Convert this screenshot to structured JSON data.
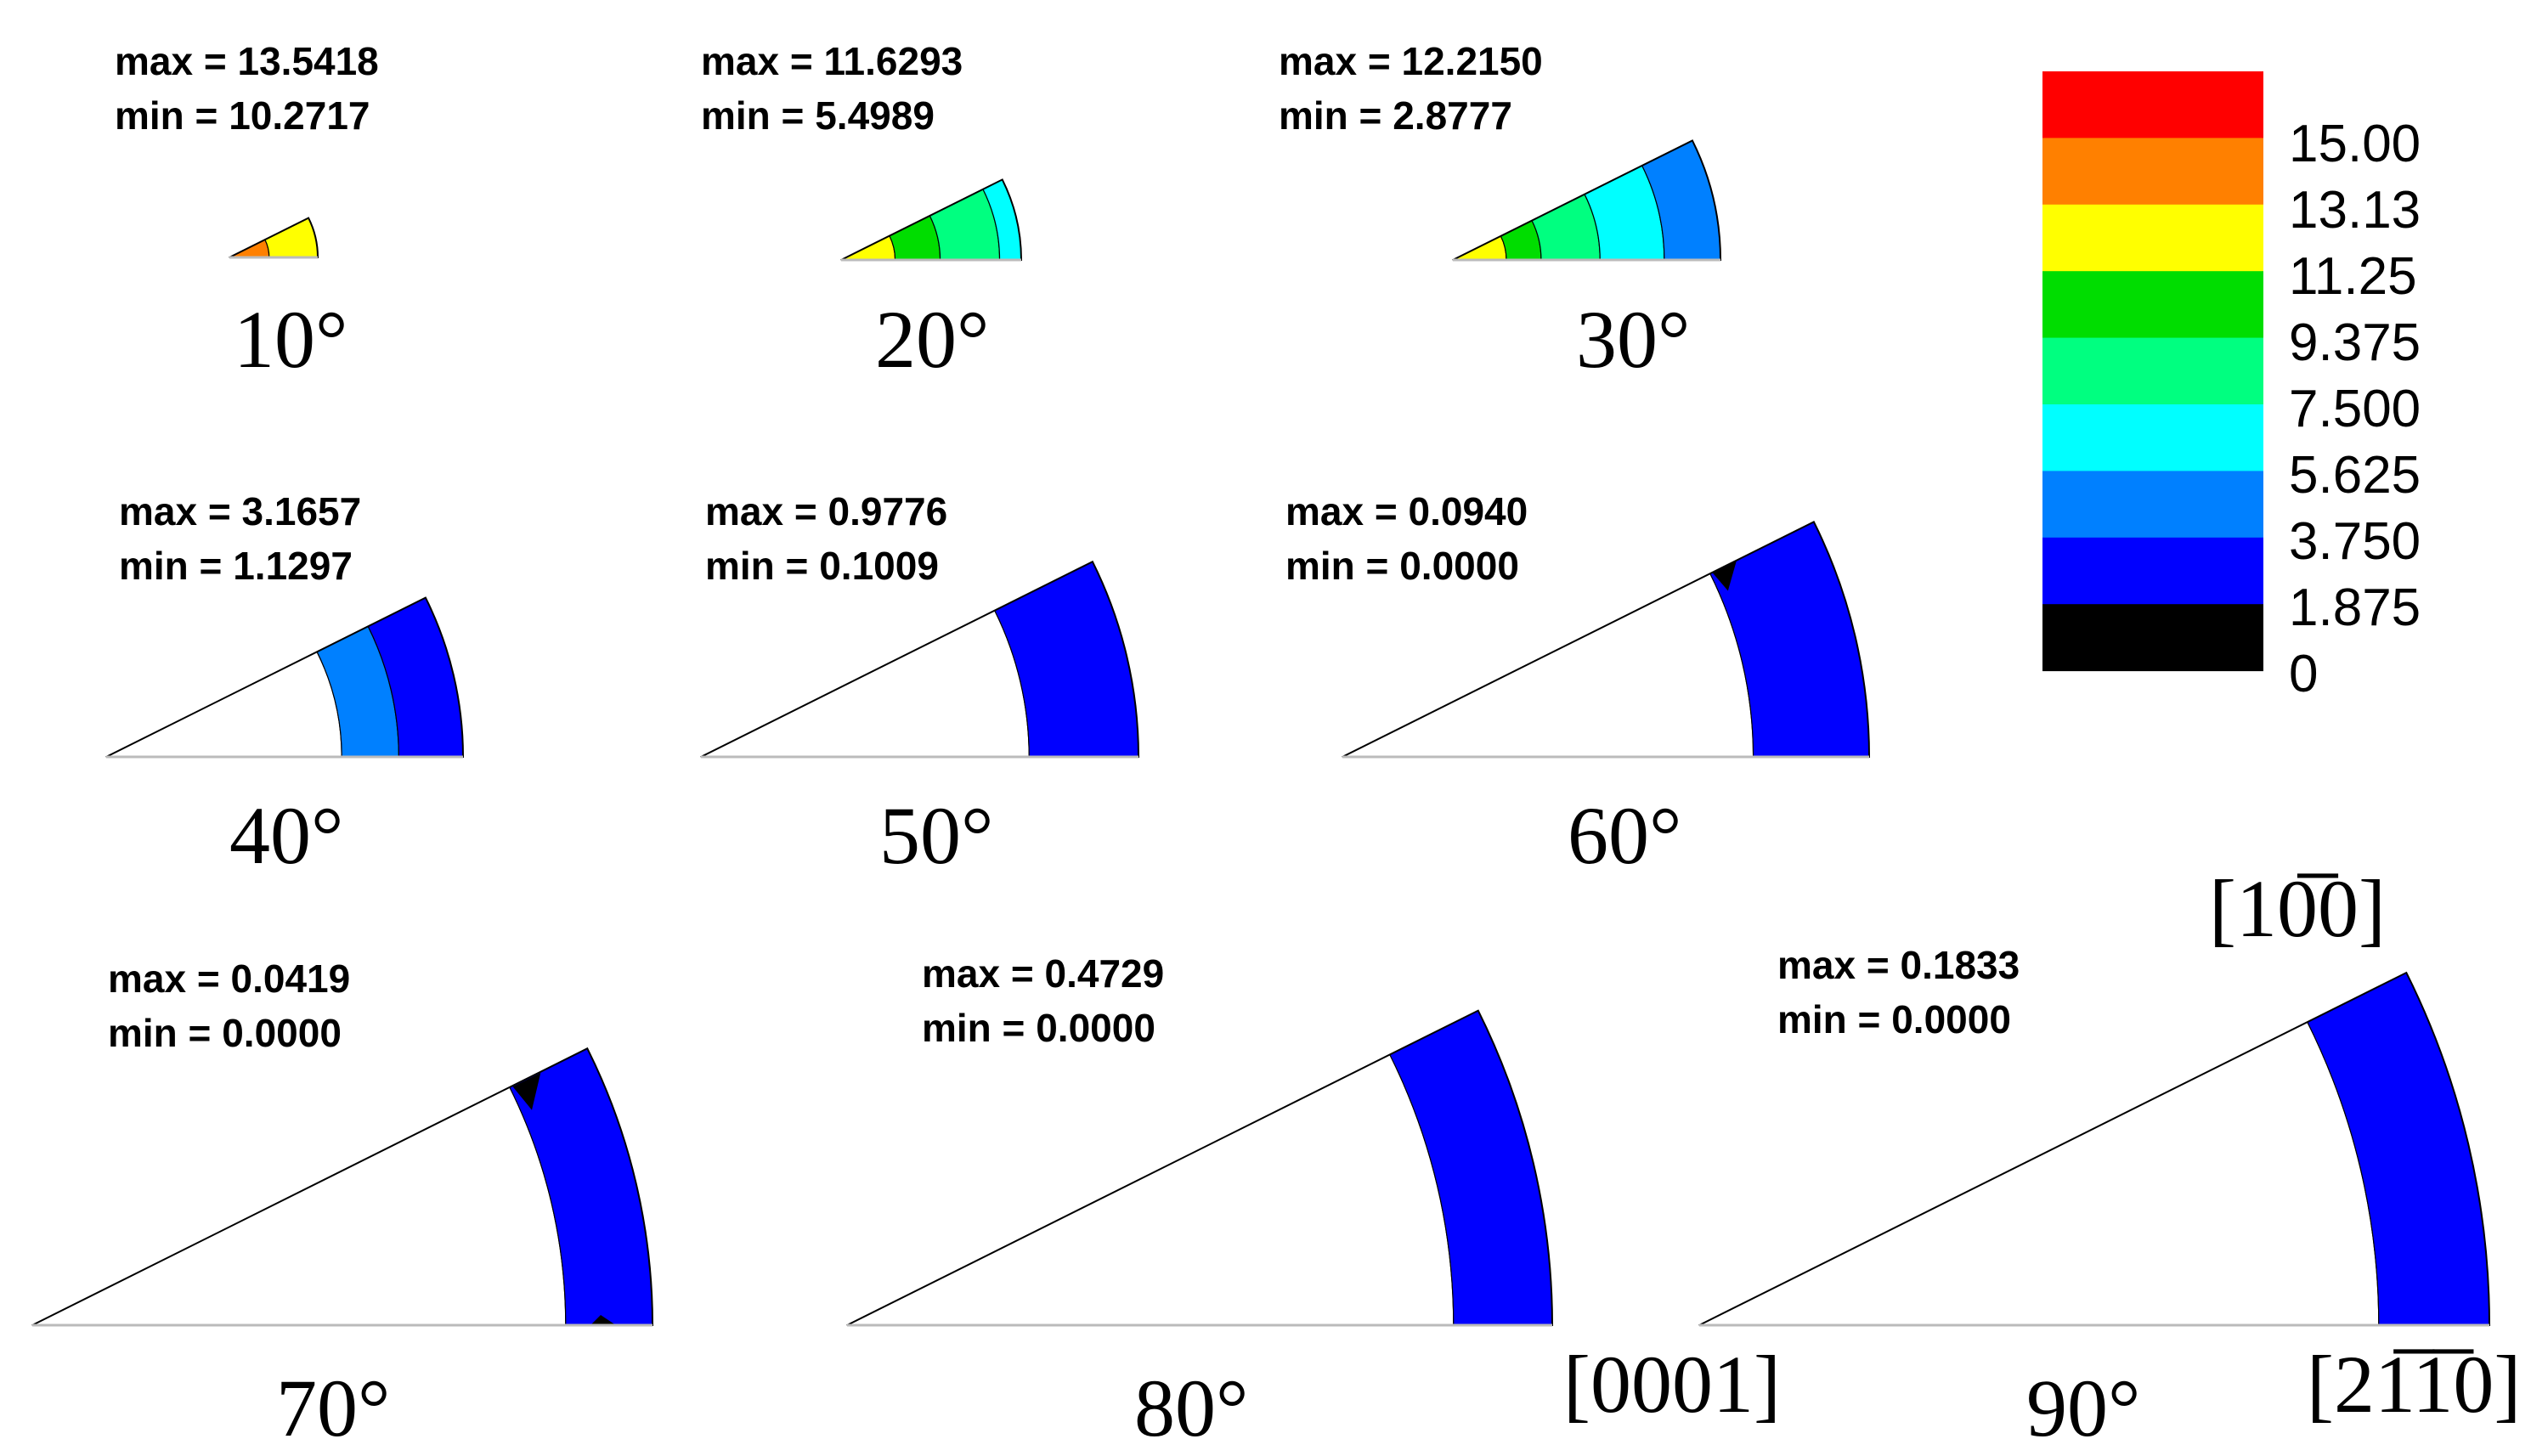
{
  "colors": {
    "red": "#ff0000",
    "orange": "#ff8000",
    "yellow": "#ffff00",
    "green": "#00dd00",
    "spring": "#00ff80",
    "cyan": "#00ffff",
    "sky": "#0080ff",
    "blue": "#0000ff",
    "black": "#000000",
    "white": "#ffffff"
  },
  "legend": {
    "levels": [
      "15.00",
      "13.13",
      "11.25",
      "9.375",
      "7.500",
      "5.625",
      "3.750",
      "1.875",
      "0"
    ],
    "band_colors": [
      "#ff0000",
      "#ff8000",
      "#ffff00",
      "#00dd00",
      "#00ff80",
      "#00ffff",
      "#0080ff",
      "#0000ff",
      "#000000"
    ]
  },
  "panels": [
    {
      "angle": "10°",
      "max": "max = 13.5418",
      "min": "min = 10.2717",
      "bands": [
        "orange",
        "yellow"
      ]
    },
    {
      "angle": "20°",
      "max": "max = 11.6293",
      "min": "min = 5.4989",
      "bands": [
        "yellow",
        "green",
        "spring",
        "cyan"
      ]
    },
    {
      "angle": "30°",
      "max": "max = 12.2150",
      "min": "min = 2.8777",
      "bands": [
        "yellow",
        "green",
        "spring",
        "cyan",
        "sky"
      ]
    },
    {
      "angle": "40°",
      "max": "max = 3.1657",
      "min": "min = 1.1297",
      "bands": [
        "white",
        "sky",
        "blue"
      ]
    },
    {
      "angle": "50°",
      "max": "max = 0.9776",
      "min": "min = 0.1009",
      "bands": [
        "white",
        "blue"
      ]
    },
    {
      "angle": "60°",
      "max": "max = 0.0940",
      "min": "min = 0.0000",
      "bands": [
        "white",
        "blue"
      ]
    },
    {
      "angle": "70°",
      "max": "max = 0.0419",
      "min": "min = 0.0000",
      "bands": [
        "white",
        "blue"
      ]
    },
    {
      "angle": "80°",
      "max": "max = 0.4729",
      "min": "min = 0.0000",
      "bands": [
        "white",
        "blue"
      ]
    },
    {
      "angle": "90°",
      "max": "max = 0.1833",
      "min": "min = 0.0000",
      "bands": [
        "white",
        "blue"
      ]
    }
  ],
  "directions": {
    "top": "[10̅0]",
    "left": "[0001]",
    "right": "[21̅1̅0]"
  }
}
